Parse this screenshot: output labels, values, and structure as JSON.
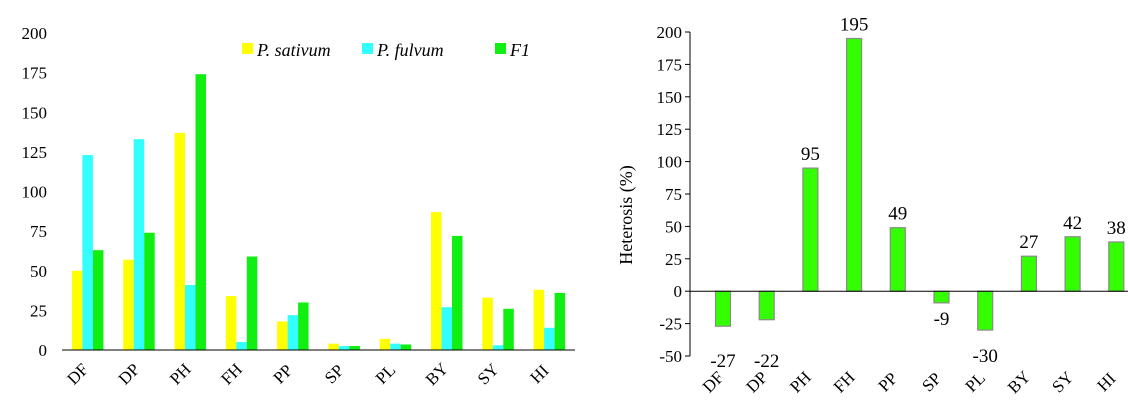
{
  "chart_data": [
    {
      "type": "bar",
      "title": "",
      "xlabel": "",
      "ylabel": "",
      "ylim": [
        0,
        200
      ],
      "yticks": [
        "0",
        "25",
        "50",
        "75",
        "100",
        "125",
        "150",
        "175",
        "200"
      ],
      "categories": [
        "DF",
        "DP",
        "PH",
        "FH",
        "PP",
        "SP",
        "PL",
        "BY",
        "SY",
        "HI"
      ],
      "series": [
        {
          "name": "P. sativum",
          "color": "#ffff00",
          "values": [
            50,
            57,
            137,
            34,
            18,
            4,
            7,
            87,
            33,
            38
          ]
        },
        {
          "name": "P. fulvum",
          "color": "#33ffff",
          "values": [
            123,
            133,
            41,
            5,
            22,
            2.5,
            4,
            27,
            3,
            14
          ]
        },
        {
          "name": "F1",
          "color": "#11ee11",
          "values": [
            63,
            74,
            174,
            59,
            30,
            2.5,
            3.5,
            72,
            26,
            36
          ]
        }
      ],
      "grid": false,
      "legend_position": "top-right"
    },
    {
      "type": "bar",
      "title": "",
      "xlabel": "",
      "ylabel": "Heterosis   (%)",
      "ylim": [
        -50,
        200
      ],
      "yticks": [
        "-50",
        "-25",
        "0",
        "25",
        "50",
        "75",
        "100",
        "125",
        "150",
        "175",
        "200"
      ],
      "categories": [
        "DF",
        "DP",
        "PH",
        "FH",
        "PP",
        "SP",
        "PL",
        "BY",
        "SY",
        "HI"
      ],
      "values": [
        -27,
        -22,
        95,
        195,
        49,
        -9,
        -30,
        27,
        42,
        38
      ],
      "data_labels": [
        "-27",
        "-22",
        "95",
        "195",
        "49",
        "-9",
        "-30",
        "27",
        "42",
        "38"
      ],
      "color": "#33ff00",
      "border_color": "#8a8a8a",
      "grid": false
    }
  ]
}
